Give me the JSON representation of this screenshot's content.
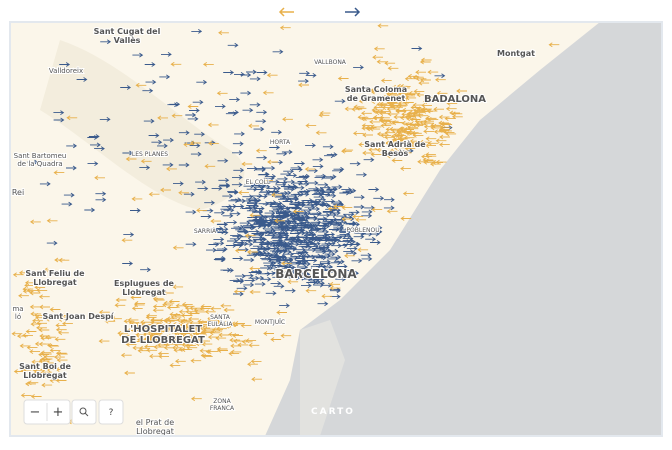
{
  "labels": [
    {
      "lines": [
        "Sant Cugat del",
        "Vallès"
      ]
    },
    {
      "lines": [
        "Montgat"
      ]
    },
    {
      "lines": [
        "Valldoreix"
      ]
    },
    {
      "lines": [
        "VALLBONA"
      ]
    },
    {
      "lines": [
        "Santa Coloma",
        "de Gramenet"
      ]
    },
    {
      "lines": [
        "BADALONA"
      ]
    },
    {
      "lines": [
        "HORTA"
      ]
    },
    {
      "lines": [
        "Sant Adrià de",
        "Besòs"
      ]
    },
    {
      "lines": [
        "Sant Bartomeu",
        "de la Quadra"
      ]
    },
    {
      "lines": [
        "LES PLANES"
      ]
    },
    {
      "lines": [
        "EL COLL"
      ]
    },
    {
      "lines": [
        "Rei"
      ]
    },
    {
      "lines": [
        "SARRIÀ"
      ]
    },
    {
      "lines": [
        "POBLENOU"
      ]
    },
    {
      "lines": [
        "BARCELONA"
      ]
    },
    {
      "lines": [
        "Sant Feliu de",
        "Llobregat"
      ]
    },
    {
      "lines": [
        "Esplugues de",
        "Llobregat"
      ]
    },
    {
      "lines": [
        "ma",
        "ló"
      ]
    },
    {
      "lines": [
        "Sant Joan Despí"
      ]
    },
    {
      "lines": [
        "SANTA",
        "EULÀLIA"
      ]
    },
    {
      "lines": [
        "MONTJUÏC"
      ]
    },
    {
      "lines": [
        "L'HOSPITALET",
        "DE LLOBREGAT"
      ]
    },
    {
      "lines": [
        "Sant Boi de",
        "Llobregat"
      ]
    },
    {
      "lines": [
        "ZONA",
        "FRANCA"
      ]
    },
    {
      "lines": [
        "el Prat de",
        "Llobregat"
      ]
    }
  ],
  "controls": {
    "zoom_out": "−",
    "zoom_in": "+",
    "help": "?"
  },
  "attribution": "CARTO"
}
